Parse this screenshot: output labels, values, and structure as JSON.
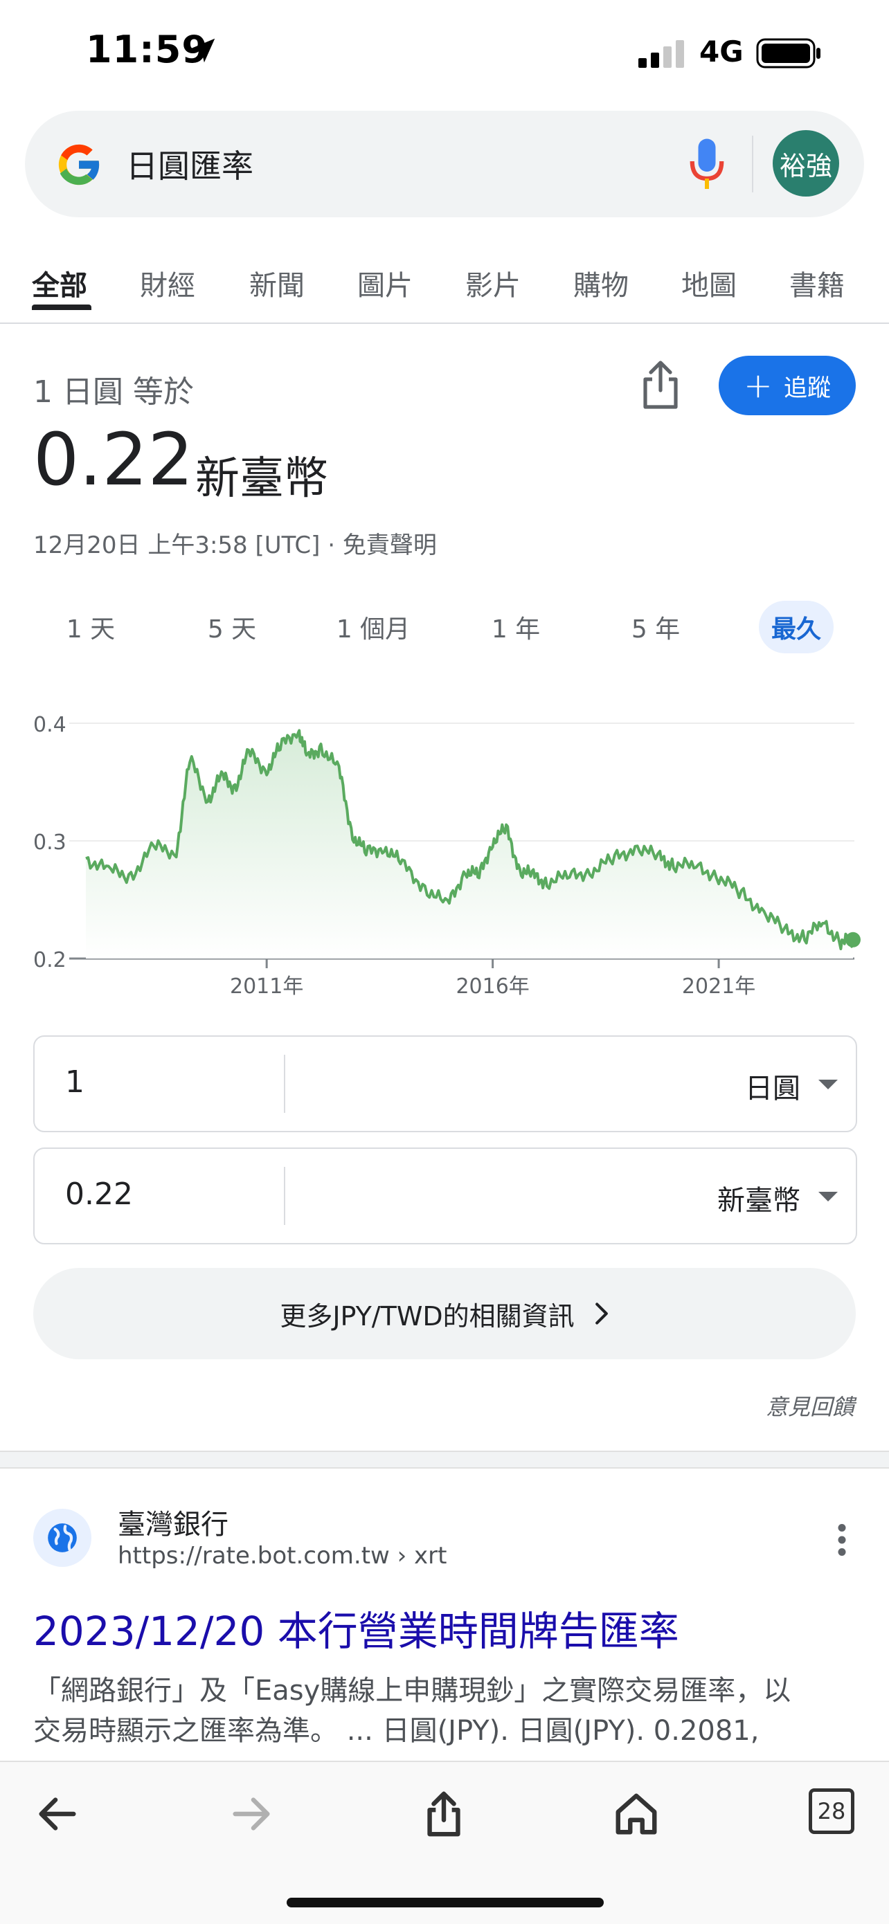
{
  "status_bar": {
    "time": "11:59",
    "network": "4G"
  },
  "search": {
    "query": "日圓匯率",
    "avatar_text": "裕強"
  },
  "tabs": [
    {
      "label": "全部",
      "active": true
    },
    {
      "label": "財經"
    },
    {
      "label": "新聞"
    },
    {
      "label": "圖片"
    },
    {
      "label": "影片"
    },
    {
      "label": "購物"
    },
    {
      "label": "地圖"
    },
    {
      "label": "書籍"
    }
  ],
  "currency": {
    "base_label": "1 日圓 等於",
    "value": "0.22",
    "unit": "新臺幣",
    "timestamp": "12月20日 上午3:58 [UTC] · 免責聲明",
    "follow_label": "追蹤",
    "ranges": [
      {
        "label": "1 天"
      },
      {
        "label": "5 天"
      },
      {
        "label": "1 個月"
      },
      {
        "label": "1 年"
      },
      {
        "label": "5 年"
      },
      {
        "label": "最久",
        "active": true
      }
    ]
  },
  "chart_data": {
    "type": "area",
    "x": [
      2007.0,
      2007.5,
      2008.0,
      2008.5,
      2009.0,
      2009.3,
      2009.7,
      2010.0,
      2010.3,
      2010.6,
      2011.0,
      2011.3,
      2011.7,
      2011.9,
      2012.2,
      2012.6,
      2012.9,
      2013.2,
      2013.6,
      2014.0,
      2014.5,
      2015.0,
      2015.4,
      2015.7,
      2016.0,
      2016.3,
      2016.6,
      2016.9,
      2017.2,
      2017.7,
      2018.2,
      2018.7,
      2019.2,
      2019.7,
      2020.0,
      2020.5,
      2021.0,
      2021.5,
      2022.0,
      2022.5,
      2022.9,
      2023.3,
      2023.7,
      2023.97
    ],
    "y": [
      0.285,
      0.275,
      0.27,
      0.295,
      0.29,
      0.37,
      0.335,
      0.355,
      0.345,
      0.375,
      0.36,
      0.38,
      0.395,
      0.37,
      0.38,
      0.36,
      0.305,
      0.29,
      0.295,
      0.28,
      0.26,
      0.245,
      0.275,
      0.27,
      0.3,
      0.31,
      0.275,
      0.27,
      0.265,
      0.27,
      0.275,
      0.285,
      0.295,
      0.285,
      0.28,
      0.278,
      0.27,
      0.255,
      0.24,
      0.222,
      0.218,
      0.23,
      0.215,
      0.216
    ],
    "ylim": [
      0.2,
      0.4
    ],
    "y_ticks": [
      "0.4",
      "0.3",
      "0.2"
    ],
    "x_ticks": [
      "2011年",
      "2016年",
      "2021年"
    ],
    "colors": {
      "line": "#5aaa5f",
      "fill": "#e6f4e8"
    },
    "grid": true
  },
  "converter": {
    "from_amount": "1",
    "from_currency": "日圓",
    "to_amount": "0.22",
    "to_currency": "新臺幣"
  },
  "more_info_label": "更多JPY/TWD的相關資訊",
  "feedback_label": "意見回饋",
  "result": {
    "site_name": "臺灣銀行",
    "url": "https://rate.bot.com.tw › xrt",
    "title": "2023/12/20 本行營業時間牌告匯率",
    "snippet_line1": "「網路銀行」及「Easy購線上申購現鈔」之實際交易匯率，以",
    "snippet_line2": "交易時顯示之匯率為準。 ... 日圓(JPY). 日圓(JPY). 0.2081,"
  },
  "toolbar": {
    "tab_count": "28"
  },
  "icons": {
    "location": "location-arrow-icon",
    "google": "google-logo-icon",
    "mic": "mic-icon",
    "share": "share-icon",
    "back": "back-arrow-icon",
    "forward": "forward-arrow-icon",
    "home": "home-icon",
    "tabs": "tabs-icon",
    "more": "kebab-menu-icon",
    "globe": "globe-icon"
  }
}
